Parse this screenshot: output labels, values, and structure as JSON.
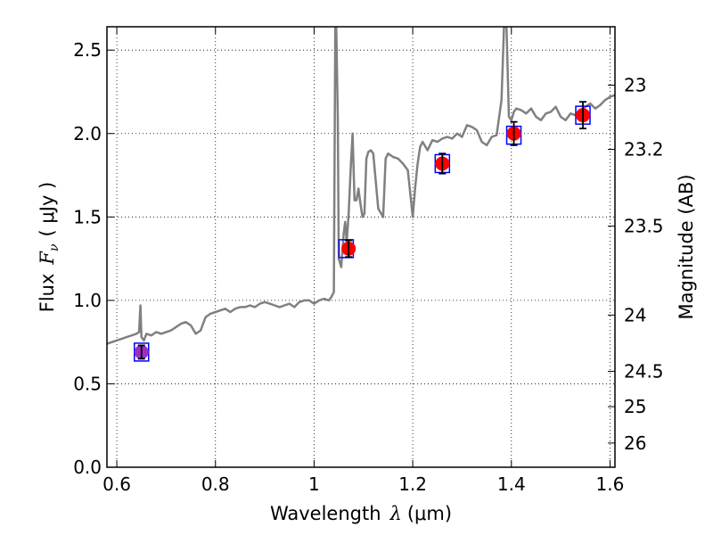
{
  "chart_data": {
    "type": "line",
    "xlabel_prefix": "Wavelength",
    "xlabel_symbol": "λ",
    "xlabel_unit": "(μm)",
    "ylabel_prefix": "Flux",
    "ylabel_symbol": "F",
    "ylabel_subscript": "ν",
    "ylabel_unit": "( μJy )",
    "y2label": "Magnitude (AB)",
    "xlim": [
      0.58,
      1.61
    ],
    "ylim": [
      0.0,
      2.64
    ],
    "grid": true,
    "x_ticks": [
      0.6,
      0.8,
      1.0,
      1.2,
      1.4,
      1.6
    ],
    "x_tick_labels": [
      "0.6",
      "0.8",
      "1",
      "1.2",
      "1.4",
      "1.6"
    ],
    "y_ticks": [
      0.0,
      0.5,
      1.0,
      1.5,
      2.0,
      2.5
    ],
    "y_tick_labels": [
      "0.0",
      "0.5",
      "1.0",
      "1.5",
      "2.0",
      "2.5"
    ],
    "y2_ticks": [
      {
        "label": "23",
        "flux": 2.29
      },
      {
        "label": "23.2",
        "flux": 1.905
      },
      {
        "label": "23.5",
        "flux": 1.445
      },
      {
        "label": "24",
        "flux": 0.912
      },
      {
        "label": "24.5",
        "flux": 0.575
      },
      {
        "label": "25",
        "flux": 0.363
      },
      {
        "label": "26",
        "flux": 0.145
      }
    ],
    "colors": {
      "spectrum": "#808080",
      "measured": "#ff0000",
      "model_box": "#0000ff",
      "errorbar": "#000000",
      "first_point": "#9b30c0"
    },
    "series": [
      {
        "kind": "spectrum",
        "x": [
          0.58,
          0.59,
          0.6,
          0.61,
          0.62,
          0.63,
          0.64,
          0.645,
          0.648,
          0.65,
          0.655,
          0.66,
          0.67,
          0.68,
          0.69,
          0.7,
          0.71,
          0.72,
          0.73,
          0.74,
          0.75,
          0.76,
          0.77,
          0.78,
          0.79,
          0.8,
          0.81,
          0.82,
          0.83,
          0.84,
          0.85,
          0.86,
          0.87,
          0.88,
          0.89,
          0.9,
          0.91,
          0.92,
          0.93,
          0.94,
          0.95,
          0.96,
          0.97,
          0.98,
          0.99,
          1.0,
          1.01,
          1.02,
          1.03,
          1.035,
          1.04,
          1.043,
          1.045,
          1.048,
          1.05,
          1.055,
          1.06,
          1.063,
          1.066,
          1.07,
          1.074,
          1.078,
          1.082,
          1.086,
          1.09,
          1.094,
          1.098,
          1.102,
          1.106,
          1.11,
          1.115,
          1.12,
          1.13,
          1.14,
          1.145,
          1.15,
          1.16,
          1.17,
          1.18,
          1.19,
          1.2,
          1.205,
          1.21,
          1.215,
          1.22,
          1.23,
          1.24,
          1.25,
          1.26,
          1.27,
          1.28,
          1.29,
          1.3,
          1.31,
          1.32,
          1.33,
          1.34,
          1.35,
          1.36,
          1.37,
          1.38,
          1.385,
          1.39,
          1.395,
          1.4,
          1.405,
          1.41,
          1.42,
          1.43,
          1.44,
          1.45,
          1.46,
          1.47,
          1.48,
          1.49,
          1.5,
          1.51,
          1.52,
          1.53,
          1.54,
          1.55,
          1.56,
          1.57,
          1.58,
          1.59,
          1.6,
          1.61
        ],
        "y": [
          0.74,
          0.75,
          0.76,
          0.77,
          0.78,
          0.79,
          0.8,
          0.81,
          0.97,
          0.78,
          0.76,
          0.8,
          0.79,
          0.81,
          0.8,
          0.81,
          0.82,
          0.84,
          0.86,
          0.87,
          0.85,
          0.8,
          0.82,
          0.9,
          0.92,
          0.93,
          0.94,
          0.95,
          0.93,
          0.95,
          0.96,
          0.96,
          0.97,
          0.96,
          0.98,
          0.99,
          0.98,
          0.97,
          0.96,
          0.97,
          0.98,
          0.96,
          0.99,
          1.0,
          1.0,
          0.98,
          1.0,
          1.01,
          1.0,
          1.02,
          1.05,
          2.64,
          2.64,
          2.1,
          1.25,
          1.2,
          1.4,
          1.47,
          1.35,
          1.52,
          1.78,
          2.0,
          1.6,
          1.6,
          1.67,
          1.58,
          1.5,
          1.52,
          1.85,
          1.89,
          1.9,
          1.88,
          1.55,
          1.5,
          1.85,
          1.88,
          1.86,
          1.85,
          1.82,
          1.78,
          1.5,
          1.68,
          1.82,
          1.92,
          1.95,
          1.9,
          1.96,
          1.95,
          1.97,
          1.98,
          1.97,
          2.0,
          1.98,
          2.05,
          2.04,
          2.02,
          1.95,
          1.93,
          1.98,
          1.99,
          2.2,
          2.64,
          2.64,
          2.1,
          2.08,
          2.13,
          2.15,
          2.14,
          2.12,
          2.15,
          2.1,
          2.08,
          2.12,
          2.13,
          2.16,
          2.1,
          2.08,
          2.12,
          2.11,
          2.14,
          2.16,
          2.18,
          2.15,
          2.17,
          2.2,
          2.22,
          2.23
        ]
      },
      {
        "kind": "measured",
        "x": [
          0.65,
          1.07,
          1.26,
          1.405,
          1.545
        ],
        "y": [
          0.69,
          1.31,
          1.82,
          2.0,
          2.11
        ],
        "err": [
          0.04,
          0.05,
          0.06,
          0.07,
          0.08
        ]
      },
      {
        "kind": "model",
        "x": [
          0.65,
          1.065,
          1.26,
          1.405,
          1.545
        ],
        "y": [
          0.69,
          1.31,
          1.82,
          1.99,
          2.11
        ]
      }
    ]
  }
}
